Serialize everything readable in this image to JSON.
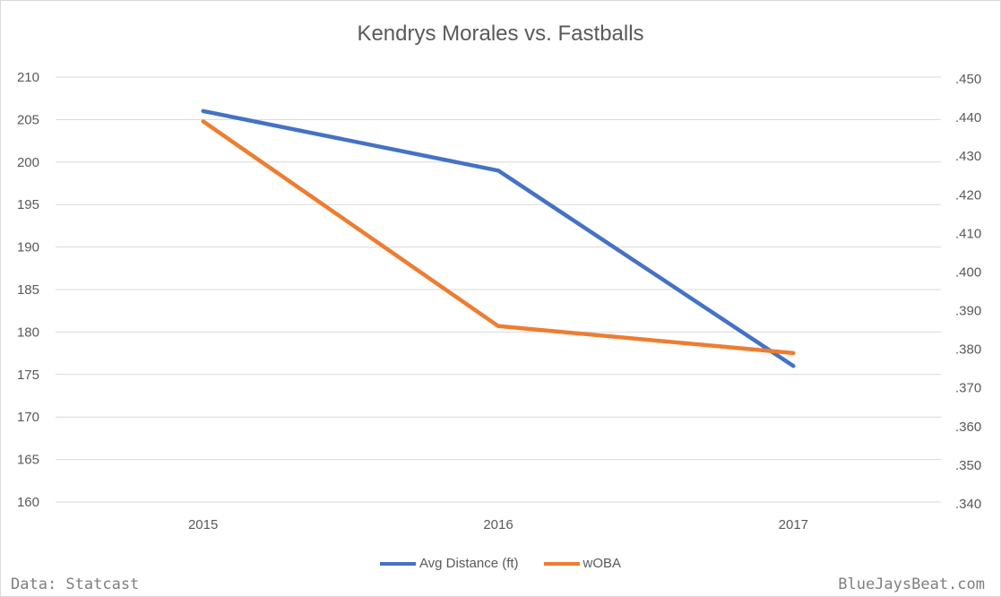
{
  "chart_data": {
    "type": "line",
    "title": "Kendrys Morales vs. Fastballs",
    "categories": [
      "2015",
      "2016",
      "2017"
    ],
    "y_left": {
      "ticks": [
        "210",
        "205",
        "200",
        "195",
        "190",
        "185",
        "180",
        "175",
        "170",
        "165",
        "160"
      ],
      "ylim": [
        160,
        210
      ]
    },
    "y_right": {
      "ticks": [
        ".450",
        ".440",
        ".430",
        ".420",
        ".410",
        ".400",
        ".390",
        ".380",
        ".370",
        ".360",
        ".350",
        ".340"
      ],
      "ylim": [
        0.34,
        0.45
      ]
    },
    "series": [
      {
        "name": "Avg Distance (ft)",
        "axis": "left",
        "color": "#4472c4",
        "values": [
          206,
          199,
          176
        ]
      },
      {
        "name": "wOBA",
        "axis": "right",
        "color": "#ed7d31",
        "values": [
          0.439,
          0.386,
          0.379
        ]
      }
    ],
    "grid": true,
    "legend": "bottom"
  },
  "footer": {
    "source": "Data: Statcast",
    "site": "BlueJaysBeat.com"
  }
}
